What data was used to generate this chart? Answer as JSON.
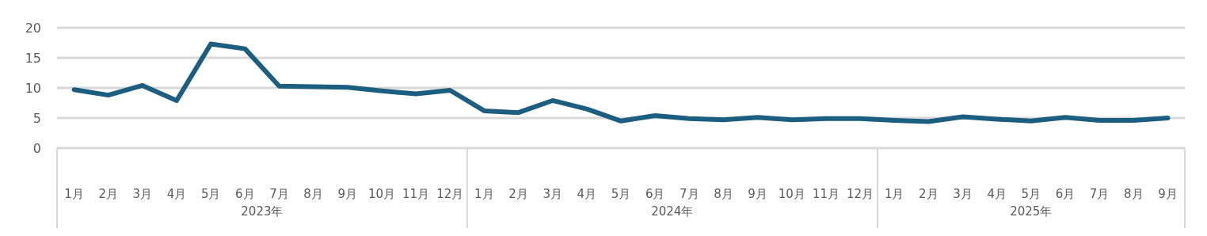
{
  "chart_data": {
    "type": "line",
    "categories": [
      "1月",
      "2月",
      "3月",
      "4月",
      "5月",
      "6月",
      "7月",
      "8月",
      "9月",
      "10月",
      "11月",
      "12月",
      "1月",
      "2月",
      "3月",
      "4月",
      "5月",
      "6月",
      "7月",
      "8月",
      "9月",
      "10月",
      "11月",
      "12月",
      "1月",
      "2月",
      "3月",
      "4月",
      "5月",
      "6月",
      "7月",
      "8月",
      "9月"
    ],
    "series": [
      {
        "color": "#1b5e80",
        "values": [
          9.7,
          8.8,
          10.4,
          7.9,
          17.3,
          16.5,
          10.3,
          10.2,
          10.1,
          9.5,
          9.0,
          9.6,
          6.2,
          5.9,
          7.9,
          6.5,
          4.5,
          5.4,
          4.9,
          4.7,
          5.1,
          4.7,
          4.9,
          4.9,
          4.6,
          4.4,
          5.2,
          4.8,
          4.5,
          5.1,
          4.6,
          4.6,
          5.0
        ]
      }
    ],
    "annotations": [
      "2023年",
      "2024年",
      "2025年"
    ],
    "ylim": [
      0,
      20
    ],
    "yticks": [
      0,
      5,
      10,
      15,
      20
    ],
    "grid": "y",
    "legend": false,
    "marker": "none",
    "line_style": "solid"
  }
}
